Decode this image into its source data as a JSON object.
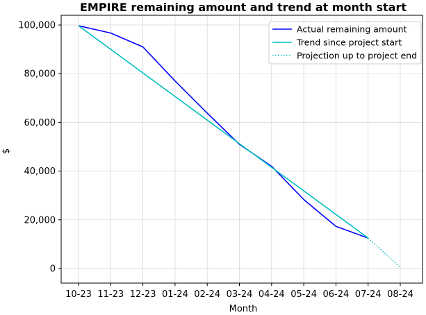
{
  "chart_data": {
    "type": "line",
    "title": "EMPIRE remaining amount and trend at month start",
    "xlabel": "Month",
    "ylabel": "$",
    "categories": [
      "10-23",
      "11-23",
      "12-23",
      "01-24",
      "02-24",
      "03-24",
      "04-24",
      "05-24",
      "06-24",
      "07-24",
      "08-24"
    ],
    "ylim": [
      -6000,
      104000
    ],
    "yticks": [
      0,
      20000,
      40000,
      60000,
      80000,
      100000
    ],
    "ytick_labels": [
      "0",
      "20,000",
      "40,000",
      "60,000",
      "80,000",
      "100,000"
    ],
    "grid": true,
    "legend_position": "top-right",
    "series": [
      {
        "name": "Actual remaining amount",
        "color": "#0000ff",
        "style": "solid",
        "x": [
          "10-23",
          "11-23",
          "12-23",
          "01-24",
          "02-24",
          "03-24",
          "04-24",
          "05-24",
          "06-24",
          "07-24"
        ],
        "values": [
          99700,
          96700,
          91000,
          77000,
          63800,
          51000,
          42000,
          28300,
          17300,
          12500
        ]
      },
      {
        "name": "Trend since project start",
        "color": "#00bfbf",
        "style": "solid",
        "x": [
          "10-23",
          "07-24"
        ],
        "values": [
          99700,
          12500
        ]
      },
      {
        "name": "Projection up to project end",
        "color": "#00bfbf",
        "style": "dotted",
        "x": [
          "07-24",
          "08-24"
        ],
        "values": [
          12500,
          500
        ]
      }
    ]
  }
}
